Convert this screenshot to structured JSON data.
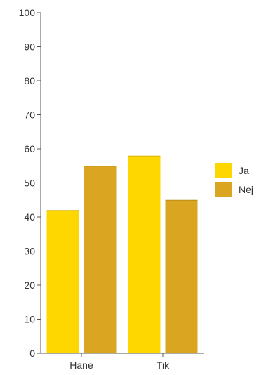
{
  "chart_data": {
    "type": "bar",
    "categories": [
      "Hane",
      "Tik"
    ],
    "series": [
      {
        "name": "Ja",
        "values": [
          42,
          58
        ],
        "color": "#FFD700"
      },
      {
        "name": "Nej",
        "values": [
          55,
          45
        ],
        "color": "#DAA520"
      }
    ],
    "ylim": [
      0,
      100
    ],
    "yticks": [
      0,
      10,
      20,
      30,
      40,
      50,
      60,
      70,
      80,
      90,
      100
    ],
    "title": "",
    "xlabel": "",
    "ylabel": "",
    "grid": false,
    "legend_position": "right"
  }
}
